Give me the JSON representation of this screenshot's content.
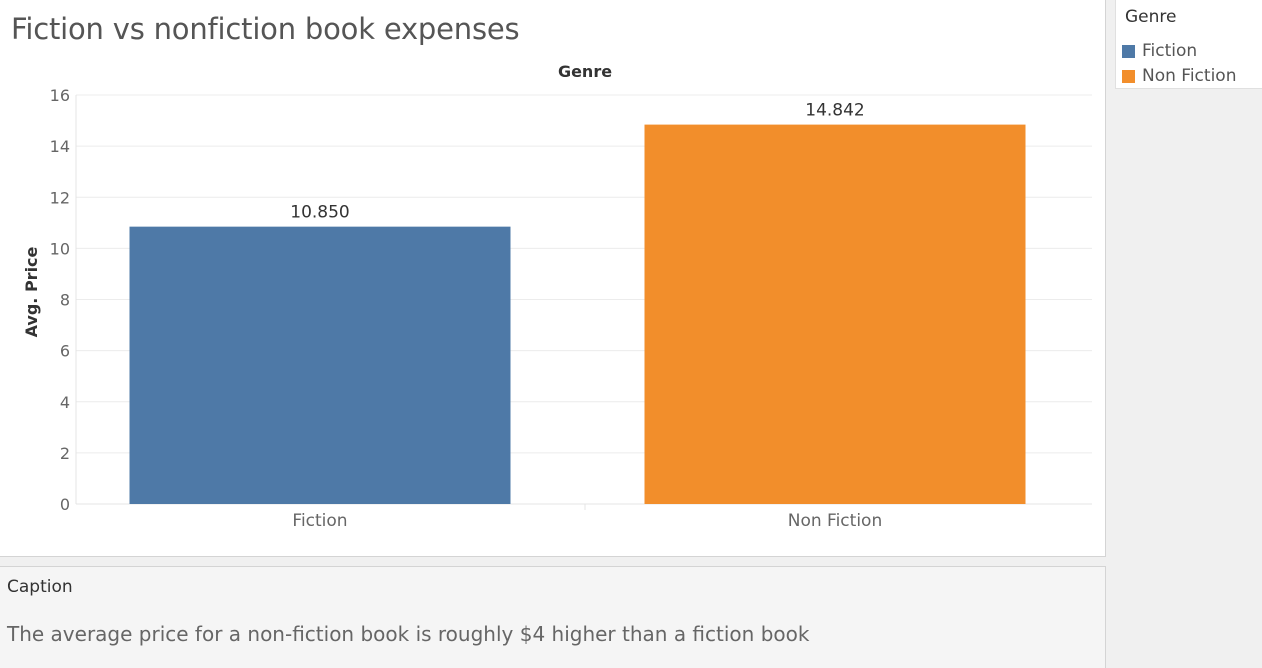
{
  "title": "Fiction vs nonfiction book expenses",
  "legend": {
    "title": "Genre",
    "items": [
      {
        "label": "Fiction",
        "color": "#4e79a7"
      },
      {
        "label": "Non Fiction",
        "color": "#f28e2b"
      }
    ]
  },
  "caption": {
    "title": "Caption",
    "text": "The average price for a non-fiction book is roughly $4 higher than a fiction book"
  },
  "chart_data": {
    "type": "bar",
    "column_header": "Genre",
    "categories": [
      "Fiction",
      "Non Fiction"
    ],
    "values": [
      10.85,
      14.842
    ],
    "data_labels": [
      "10.850",
      "14.842"
    ],
    "colors": [
      "#4e79a7",
      "#f28e2b"
    ],
    "ylabel": "Avg. Price",
    "xlabel": "",
    "ylim": [
      0,
      16
    ],
    "yticks": [
      0,
      2,
      4,
      6,
      8,
      10,
      12,
      14,
      16
    ],
    "grid": true,
    "legend_position": "top-right"
  }
}
